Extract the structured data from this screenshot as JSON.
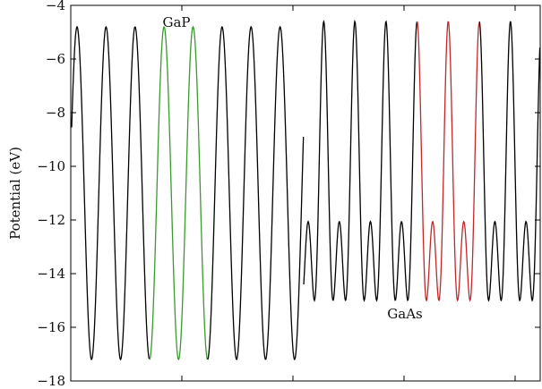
{
  "chart_data": {
    "type": "line",
    "title": "",
    "xlabel": "",
    "ylabel": "Potential (eV)",
    "ylim": [
      -18,
      -4
    ],
    "yticks": [
      -4,
      -6,
      -8,
      -10,
      -12,
      -14,
      -16,
      -18
    ],
    "ytick_labels": [
      "−4",
      "−6",
      "−8",
      "−10",
      "−12",
      "−14",
      "−16",
      "−18"
    ],
    "x_tick_labels_shown": false,
    "grid": false,
    "regions": [
      {
        "name": "GaP",
        "periods": 8,
        "max": -4.8,
        "min": -17.2
      },
      {
        "name": "GaAs",
        "periods": 7.6,
        "max": -4.6,
        "min": -15.0,
        "shoulder": -8.5
      }
    ],
    "series": [
      {
        "color": "#000000",
        "description_region": "GaP periods outside highlight"
      },
      {
        "color": "#3a9a2e",
        "description_region": "GaP highlighted periods"
      },
      {
        "color": "#c0282a",
        "description_region": "GaAs highlighted periods"
      }
    ],
    "annotations": [
      {
        "text": "GaP"
      },
      {
        "text": "GaAs"
      }
    ]
  }
}
